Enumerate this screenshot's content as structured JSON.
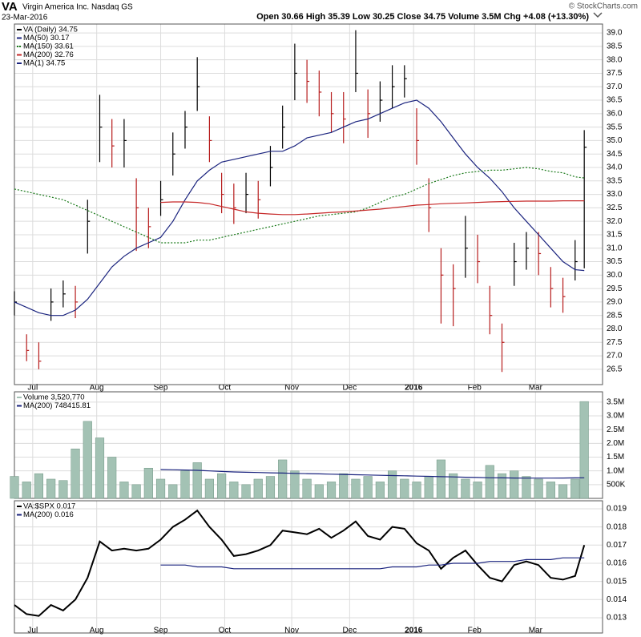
{
  "header": {
    "symbol": "VA",
    "name": "Virgin America Inc. Nasdaq GS",
    "date": "23-Mar-2016",
    "stats": "Open 30.66 High 35.39 Low 30.25 Close 34.75 Volume 3.5M Chg +4.08 (+13.30%)",
    "credit": "© StockCharts.com"
  },
  "chart_data": [
    {
      "type": "ohlc",
      "grid": true,
      "x": [
        0,
        4,
        8,
        12,
        16,
        20,
        24,
        28,
        32,
        36,
        40,
        44,
        48,
        52,
        56,
        60,
        64,
        68,
        72,
        76,
        80,
        84,
        88,
        92,
        96,
        100,
        104,
        108,
        112,
        116,
        120,
        124,
        128,
        132,
        136,
        140,
        144,
        148,
        152,
        156,
        160,
        164,
        168,
        172,
        176,
        180,
        184,
        187
      ],
      "xlim": [
        0,
        193
      ],
      "xticks": [
        {
          "value": 6,
          "label": "Jul"
        },
        {
          "value": 27,
          "label": "Aug"
        },
        {
          "value": 48,
          "label": "Sep"
        },
        {
          "value": 69,
          "label": "Oct"
        },
        {
          "value": 91,
          "label": "Nov"
        },
        {
          "value": 110,
          "label": "Dec"
        },
        {
          "value": 131,
          "label": "2016"
        },
        {
          "value": 151,
          "label": "Feb"
        },
        {
          "value": 171,
          "label": "Mar"
        }
      ],
      "ylim": [
        25.93,
        39.33
      ],
      "yticks": [
        26.5,
        {
          "value": 27,
          "label": "27.0"
        },
        27.5,
        {
          "value": 28,
          "label": "28.0"
        },
        28.5,
        {
          "value": 29,
          "label": "29.0"
        },
        29.5,
        {
          "value": 30,
          "label": "30.0"
        },
        30.5,
        {
          "value": 31,
          "label": "31.0"
        },
        31.5,
        {
          "value": 32,
          "label": "32.0"
        },
        32.5,
        {
          "value": 33,
          "label": "33.0"
        },
        33.5,
        {
          "value": 34,
          "label": "34.0"
        },
        34.5,
        {
          "value": 35,
          "label": "35.0"
        },
        35.5,
        {
          "value": 36,
          "label": "36.0"
        },
        36.5,
        {
          "value": 37,
          "label": "37.0"
        },
        37.5,
        {
          "value": 38,
          "label": "38.0"
        },
        38.5,
        {
          "value": 39,
          "label": "39.0"
        }
      ],
      "series": [
        {
          "name": "VA (Daily) 34.75",
          "type": "ohlc",
          "color": "#000000",
          "high": [
            29.4,
            27.8,
            27.5,
            29.5,
            29.8,
            29.6,
            32.8,
            36.7,
            35.8,
            35.8,
            33.6,
            32.5,
            33.5,
            35.3,
            36.1,
            38.1,
            35.9,
            33.8,
            33.4,
            33.8,
            33.5,
            34.8,
            36.3,
            38.6,
            38.0,
            37.6,
            36.8,
            36.8,
            39.1,
            36.9,
            37.2,
            37.8,
            37.8,
            36.2,
            33.6,
            31.0,
            30.4,
            32.2,
            31.5,
            29.6,
            28.2,
            31.2,
            31.6,
            31.6,
            30.3,
            29.9,
            31.3,
            35.39
          ],
          "low": [
            28.5,
            26.8,
            26.5,
            28.3,
            28.8,
            28.4,
            30.8,
            34.2,
            34.0,
            34.0,
            30.9,
            31.0,
            32.2,
            33.7,
            34.7,
            36.1,
            34.2,
            32.3,
            31.9,
            32.3,
            32.1,
            33.3,
            34.7,
            36.5,
            36.4,
            35.9,
            35.3,
            34.9,
            36.8,
            35.1,
            35.7,
            36.2,
            36.6,
            34.1,
            31.6,
            28.2,
            28.1,
            29.9,
            29.7,
            27.8,
            26.4,
            29.6,
            30.2,
            30.0,
            28.8,
            28.6,
            29.8,
            30.25
          ],
          "close": [
            29.0,
            27.2,
            26.8,
            29.0,
            29.3,
            29.0,
            32.0,
            35.5,
            34.8,
            35.0,
            32.5,
            31.8,
            32.8,
            34.5,
            35.5,
            37.0,
            35.0,
            33.0,
            32.5,
            33.0,
            32.8,
            34.0,
            35.5,
            37.5,
            37.2,
            36.8,
            36.0,
            35.8,
            37.5,
            36.0,
            36.5,
            37.0,
            37.3,
            35.0,
            32.5,
            30.0,
            29.5,
            31.0,
            30.5,
            28.5,
            27.5,
            30.5,
            31.0,
            30.8,
            29.5,
            29.2,
            30.5,
            34.75
          ]
        },
        {
          "name": "MA(50) 30.17",
          "type": "line",
          "color": "#1a237e",
          "values": [
            29.0,
            28.8,
            28.6,
            28.5,
            28.5,
            28.7,
            29.1,
            29.7,
            30.3,
            30.7,
            31.0,
            31.2,
            31.4,
            32.0,
            32.8,
            33.5,
            33.9,
            34.2,
            34.3,
            34.4,
            34.5,
            34.6,
            34.6,
            34.8,
            35.1,
            35.2,
            35.3,
            35.5,
            35.7,
            35.8,
            36.0,
            36.2,
            36.4,
            36.5,
            36.2,
            35.7,
            35.1,
            34.5,
            34.0,
            33.6,
            33.1,
            32.5,
            32.0,
            31.5,
            31.0,
            30.5,
            30.2,
            30.17
          ]
        },
        {
          "name": "MA(150) 33.61",
          "type": "line",
          "color": "#1b7a1b",
          "dashed": true,
          "values": [
            33.2,
            33.1,
            33.0,
            32.9,
            32.8,
            32.6,
            32.4,
            32.2,
            32.0,
            31.8,
            31.6,
            31.4,
            31.2,
            31.2,
            31.2,
            31.3,
            31.3,
            31.4,
            31.5,
            31.6,
            31.7,
            31.8,
            31.9,
            32.0,
            32.1,
            32.2,
            32.25,
            32.3,
            32.35,
            32.5,
            32.7,
            32.9,
            33.0,
            33.2,
            33.4,
            33.55,
            33.7,
            33.8,
            33.85,
            33.9,
            33.9,
            33.95,
            34.0,
            33.95,
            33.85,
            33.8,
            33.65,
            33.61
          ]
        },
        {
          "name": "MA(200) 32.76",
          "type": "line",
          "color": "#c62828",
          "values": [
            null,
            null,
            null,
            null,
            null,
            null,
            null,
            null,
            null,
            null,
            null,
            null,
            32.7,
            32.72,
            32.72,
            32.7,
            32.65,
            32.55,
            32.45,
            32.35,
            32.3,
            32.27,
            32.25,
            32.25,
            32.27,
            32.3,
            32.33,
            32.35,
            32.38,
            32.42,
            32.45,
            32.5,
            32.55,
            32.6,
            32.62,
            32.65,
            32.67,
            32.68,
            32.7,
            32.72,
            32.73,
            32.74,
            32.75,
            32.75,
            32.75,
            32.76,
            32.76,
            32.76
          ]
        },
        {
          "name": "MA(1) 34.75",
          "type": "legend",
          "color": "#1a237e"
        }
      ]
    },
    {
      "type": "bar",
      "grid": true,
      "x": [
        0,
        4,
        8,
        12,
        16,
        20,
        24,
        28,
        32,
        36,
        40,
        44,
        48,
        52,
        56,
        60,
        64,
        68,
        72,
        76,
        80,
        84,
        88,
        92,
        96,
        100,
        104,
        108,
        112,
        116,
        120,
        124,
        128,
        132,
        136,
        140,
        144,
        148,
        152,
        156,
        160,
        164,
        168,
        172,
        176,
        180,
        184,
        187
      ],
      "xlim": [
        0,
        193
      ],
      "ylim": [
        0,
        3874000
      ],
      "yticks": [
        {
          "value": 500000,
          "label": "500K"
        },
        {
          "value": 1000000,
          "label": "1.0M"
        },
        {
          "value": 1500000,
          "label": "1.5M"
        },
        {
          "value": 2000000,
          "label": "2.0M"
        },
        {
          "value": 2500000,
          "label": "2.5M"
        },
        {
          "value": 3000000,
          "label": "3.0M"
        },
        {
          "value": 3500000,
          "label": "3.5M"
        }
      ],
      "series": [
        {
          "name": "Volume 3,520,770",
          "type": "bar",
          "color": "#a3c2b4",
          "values": [
            800000,
            600000,
            900000,
            700000,
            650000,
            1800000,
            2800000,
            2200000,
            1500000,
            600000,
            500000,
            1100000,
            700000,
            500000,
            1000000,
            1300000,
            700000,
            900000,
            600000,
            500000,
            700000,
            800000,
            1400000,
            1000000,
            700000,
            500000,
            600000,
            900000,
            700000,
            800000,
            600000,
            1000000,
            700000,
            600000,
            800000,
            1400000,
            900000,
            700000,
            600000,
            1200000,
            900000,
            1000000,
            800000,
            700000,
            600000,
            500000,
            700000,
            3520770
          ]
        },
        {
          "name": "MA(200) 748415.81",
          "type": "line",
          "color": "#1a237e",
          "values": [
            null,
            null,
            null,
            null,
            null,
            null,
            null,
            null,
            null,
            null,
            null,
            null,
            1050000,
            1040000,
            1030000,
            1020000,
            1000000,
            980000,
            960000,
            950000,
            940000,
            930000,
            920000,
            910000,
            900000,
            890000,
            880000,
            870000,
            860000,
            850000,
            840000,
            830000,
            820000,
            810000,
            800000,
            790000,
            780000,
            770000,
            760000,
            750000,
            745000,
            740000,
            738000,
            736000,
            738000,
            740000,
            745000,
            748415.81
          ]
        }
      ]
    },
    {
      "type": "line",
      "grid": true,
      "x": [
        0,
        4,
        8,
        12,
        16,
        20,
        24,
        28,
        32,
        36,
        40,
        44,
        48,
        52,
        56,
        60,
        64,
        68,
        72,
        76,
        80,
        84,
        88,
        92,
        96,
        100,
        104,
        108,
        112,
        116,
        120,
        124,
        128,
        132,
        136,
        140,
        144,
        148,
        152,
        156,
        160,
        164,
        168,
        172,
        176,
        180,
        184,
        187
      ],
      "xlim": [
        0,
        193
      ],
      "xticks": [
        {
          "value": 6,
          "label": "Jul"
        },
        {
          "value": 27,
          "label": "Aug"
        },
        {
          "value": 48,
          "label": "Sep"
        },
        {
          "value": 69,
          "label": "Oct"
        },
        {
          "value": 91,
          "label": "Nov"
        },
        {
          "value": 110,
          "label": "Dec"
        },
        {
          "value": 131,
          "label": "2016"
        },
        {
          "value": 151,
          "label": "Feb"
        },
        {
          "value": 171,
          "label": "Mar"
        }
      ],
      "ylim": [
        0.01216,
        0.01944
      ],
      "yticks": [
        0.013,
        0.014,
        0.015,
        0.016,
        0.017,
        0.018,
        0.019
      ],
      "series": [
        {
          "name": "VA:$SPX 0.017",
          "type": "line",
          "color": "#000000",
          "width": 2,
          "values": [
            0.0137,
            0.0132,
            0.0131,
            0.0137,
            0.0134,
            0.014,
            0.0152,
            0.0172,
            0.0167,
            0.0168,
            0.0167,
            0.0168,
            0.0173,
            0.018,
            0.0184,
            0.0189,
            0.018,
            0.0173,
            0.0164,
            0.0165,
            0.0167,
            0.017,
            0.0178,
            0.0177,
            0.0176,
            0.0179,
            0.0174,
            0.0178,
            0.0183,
            0.0175,
            0.0173,
            0.018,
            0.0179,
            0.0171,
            0.0167,
            0.0157,
            0.0163,
            0.0167,
            0.0159,
            0.0152,
            0.015,
            0.0159,
            0.0161,
            0.0159,
            0.0152,
            0.0151,
            0.0153,
            0.017
          ]
        },
        {
          "name": "MA(200) 0.016",
          "type": "line",
          "color": "#1a237e",
          "values": [
            null,
            null,
            null,
            null,
            null,
            null,
            null,
            null,
            null,
            null,
            null,
            null,
            0.0159,
            0.0159,
            0.0159,
            0.0158,
            0.0158,
            0.0158,
            0.0157,
            0.0157,
            0.0157,
            0.0157,
            0.0157,
            0.0157,
            0.0157,
            0.0157,
            0.0157,
            0.0157,
            0.0157,
            0.0157,
            0.0157,
            0.0158,
            0.0158,
            0.0158,
            0.0159,
            0.0159,
            0.016,
            0.016,
            0.016,
            0.0161,
            0.0161,
            0.0161,
            0.0162,
            0.0162,
            0.0162,
            0.0163,
            0.0163,
            0.0163
          ]
        }
      ]
    }
  ]
}
